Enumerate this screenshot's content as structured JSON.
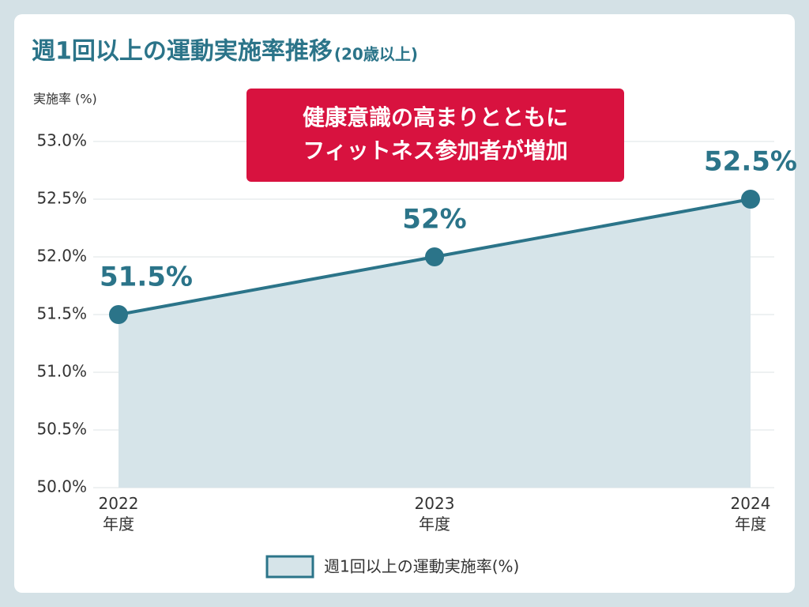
{
  "chart_data": {
    "type": "area",
    "title": "週1回以上の運動実施率推移",
    "subtitle": "(20歳以上)",
    "y_label": "実施率 (%)",
    "annotation": [
      "健康意識の高まりとともに",
      "フィットネス参加者が増加"
    ],
    "categories": [
      "2022年度",
      "2023年度",
      "2024年度"
    ],
    "series": [
      {
        "name": "週1回以上の運動実施率(%)",
        "color": "#2b7489",
        "fill": "#d6e4e9",
        "values": [
          51.5,
          52,
          52.5
        ],
        "value_labels": [
          "51.5%",
          "52%",
          "52.5%"
        ]
      }
    ],
    "ylim": [
      50,
      53
    ],
    "yticks": [
      {
        "value": 50,
        "label": "50.0%"
      },
      {
        "value": 50.5,
        "label": "50.5%"
      },
      {
        "value": 51,
        "label": "51.0%"
      },
      {
        "value": 51.5,
        "label": "51.5%"
      },
      {
        "value": 52,
        "label": "52.0%"
      },
      {
        "value": 52.5,
        "label": "52.5%"
      },
      {
        "value": 53,
        "label": "53.0%"
      }
    ],
    "grid": true,
    "legend": "bottom"
  }
}
